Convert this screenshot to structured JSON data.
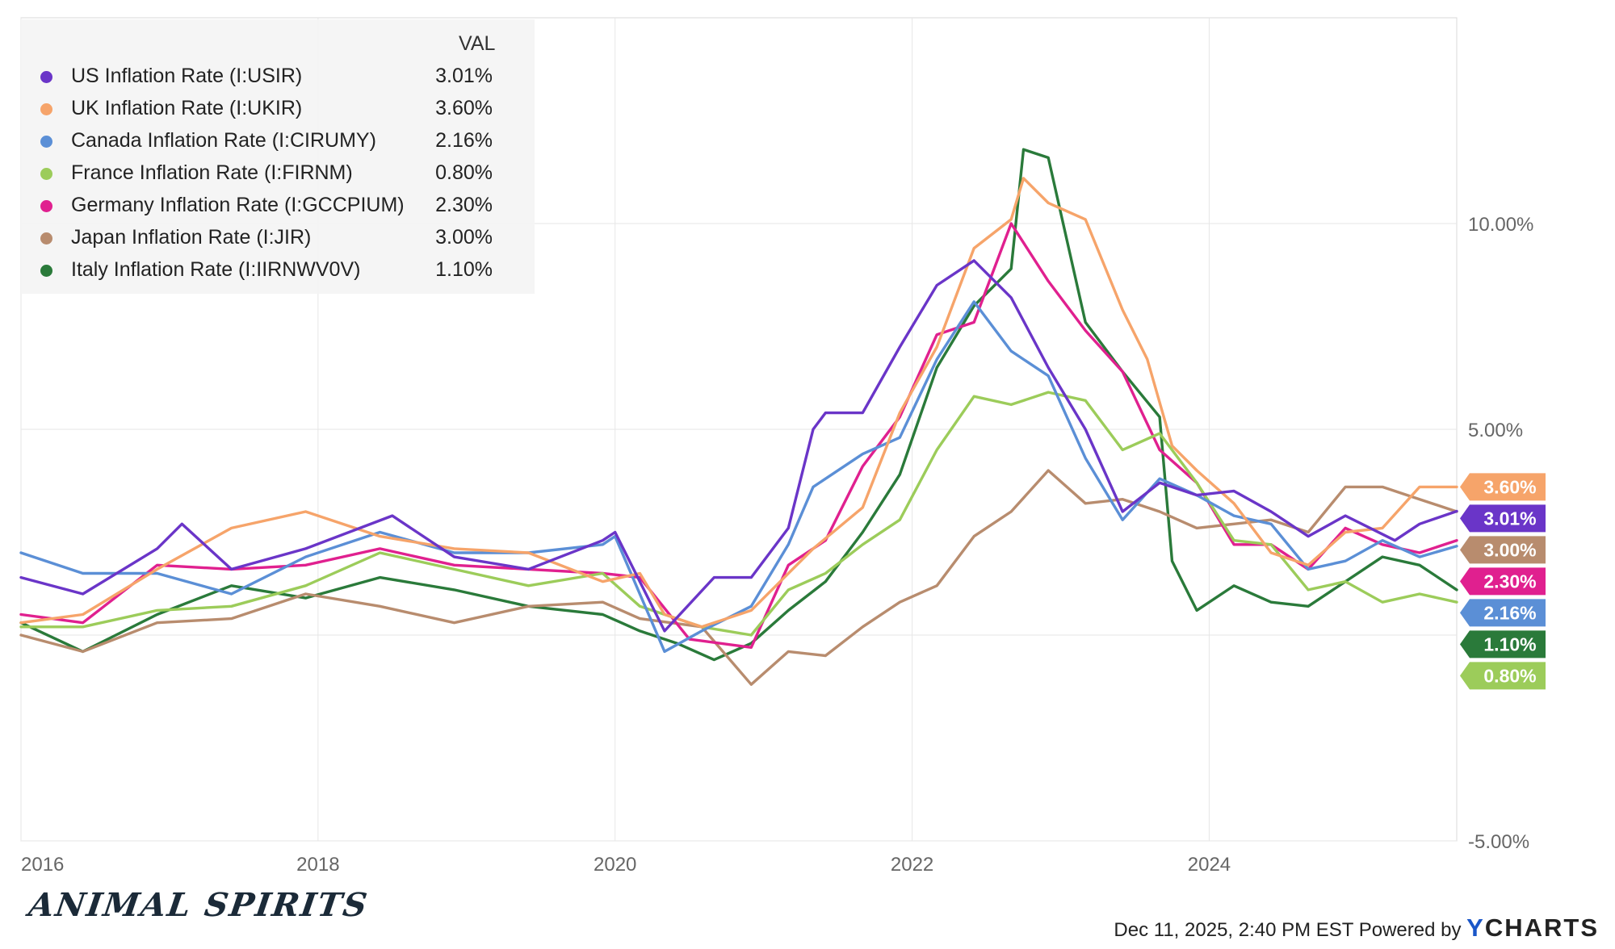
{
  "legend": {
    "header": "VAL"
  },
  "footer": {
    "logo": "ANIMAL SPIRITS",
    "timestamp": "Dec 11, 2025, 2:40 PM EST",
    "powered_by": "Powered by",
    "brand_y": "Y",
    "brand_rest": "CHARTS"
  },
  "chart_data": {
    "type": "line",
    "x_range": [
      "2016-01",
      "2025-09"
    ],
    "x_ticks": [
      "2016",
      "2018",
      "2020",
      "2022",
      "2024"
    ],
    "y_range": [
      -5,
      15
    ],
    "y_ticks": [
      -5,
      0,
      5,
      10
    ],
    "y_tick_labels": [
      "-5.00%",
      "",
      "5.00%",
      "10.00%"
    ],
    "grid": true,
    "legend_position": "top-left",
    "series": [
      {
        "name": "US Inflation Rate (I:USIR)",
        "label": "3.01%",
        "color": "#6a35c8",
        "points": [
          [
            "2016-01",
            1.4
          ],
          [
            "2016-06",
            1.0
          ],
          [
            "2016-12",
            2.1
          ],
          [
            "2017-02",
            2.7
          ],
          [
            "2017-06",
            1.6
          ],
          [
            "2017-12",
            2.1
          ],
          [
            "2018-07",
            2.9
          ],
          [
            "2018-12",
            1.9
          ],
          [
            "2019-06",
            1.6
          ],
          [
            "2019-12",
            2.3
          ],
          [
            "2020-01",
            2.5
          ],
          [
            "2020-05",
            0.1
          ],
          [
            "2020-09",
            1.4
          ],
          [
            "2020-12",
            1.4
          ],
          [
            "2021-03",
            2.6
          ],
          [
            "2021-05",
            5.0
          ],
          [
            "2021-06",
            5.4
          ],
          [
            "2021-09",
            5.4
          ],
          [
            "2021-12",
            7.0
          ],
          [
            "2022-03",
            8.5
          ],
          [
            "2022-06",
            9.1
          ],
          [
            "2022-09",
            8.2
          ],
          [
            "2022-12",
            6.5
          ],
          [
            "2023-03",
            5.0
          ],
          [
            "2023-06",
            3.0
          ],
          [
            "2023-09",
            3.7
          ],
          [
            "2023-12",
            3.4
          ],
          [
            "2024-03",
            3.5
          ],
          [
            "2024-06",
            3.0
          ],
          [
            "2024-09",
            2.4
          ],
          [
            "2024-12",
            2.9
          ],
          [
            "2025-04",
            2.3
          ],
          [
            "2025-06",
            2.7
          ],
          [
            "2025-09",
            3.01
          ]
        ]
      },
      {
        "name": "UK Inflation Rate (I:UKIR)",
        "label": "3.60%",
        "color": "#f6a46a",
        "points": [
          [
            "2016-01",
            0.3
          ],
          [
            "2016-06",
            0.5
          ],
          [
            "2016-12",
            1.6
          ],
          [
            "2017-06",
            2.6
          ],
          [
            "2017-12",
            3.0
          ],
          [
            "2018-06",
            2.4
          ],
          [
            "2018-12",
            2.1
          ],
          [
            "2019-06",
            2.0
          ],
          [
            "2019-12",
            1.3
          ],
          [
            "2020-03",
            1.5
          ],
          [
            "2020-05",
            0.5
          ],
          [
            "2020-08",
            0.2
          ],
          [
            "2020-12",
            0.6
          ],
          [
            "2021-05",
            2.1
          ],
          [
            "2021-09",
            3.1
          ],
          [
            "2021-12",
            5.4
          ],
          [
            "2022-03",
            7.0
          ],
          [
            "2022-06",
            9.4
          ],
          [
            "2022-09",
            10.1
          ],
          [
            "2022-10",
            11.1
          ],
          [
            "2022-12",
            10.5
          ],
          [
            "2023-03",
            10.1
          ],
          [
            "2023-06",
            7.9
          ],
          [
            "2023-08",
            6.7
          ],
          [
            "2023-10",
            4.6
          ],
          [
            "2023-12",
            4.0
          ],
          [
            "2024-03",
            3.2
          ],
          [
            "2024-06",
            2.0
          ],
          [
            "2024-09",
            1.7
          ],
          [
            "2024-12",
            2.5
          ],
          [
            "2025-03",
            2.6
          ],
          [
            "2025-06",
            3.6
          ],
          [
            "2025-09",
            3.6
          ]
        ]
      },
      {
        "name": "Canada Inflation Rate (I:CIRUMY)",
        "label": "2.16%",
        "color": "#5b8fd6",
        "points": [
          [
            "2016-01",
            2.0
          ],
          [
            "2016-06",
            1.5
          ],
          [
            "2016-12",
            1.5
          ],
          [
            "2017-06",
            1.0
          ],
          [
            "2017-12",
            1.9
          ],
          [
            "2018-06",
            2.5
          ],
          [
            "2018-12",
            2.0
          ],
          [
            "2019-06",
            2.0
          ],
          [
            "2019-12",
            2.2
          ],
          [
            "2020-01",
            2.4
          ],
          [
            "2020-05",
            -0.4
          ],
          [
            "2020-08",
            0.1
          ],
          [
            "2020-12",
            0.7
          ],
          [
            "2021-03",
            2.2
          ],
          [
            "2021-05",
            3.6
          ],
          [
            "2021-09",
            4.4
          ],
          [
            "2021-12",
            4.8
          ],
          [
            "2022-03",
            6.7
          ],
          [
            "2022-06",
            8.1
          ],
          [
            "2022-09",
            6.9
          ],
          [
            "2022-12",
            6.3
          ],
          [
            "2023-03",
            4.3
          ],
          [
            "2023-06",
            2.8
          ],
          [
            "2023-09",
            3.8
          ],
          [
            "2023-12",
            3.4
          ],
          [
            "2024-03",
            2.9
          ],
          [
            "2024-06",
            2.7
          ],
          [
            "2024-09",
            1.6
          ],
          [
            "2024-12",
            1.8
          ],
          [
            "2025-03",
            2.3
          ],
          [
            "2025-06",
            1.9
          ],
          [
            "2025-09",
            2.16
          ]
        ]
      },
      {
        "name": "France Inflation Rate (I:FIRNM)",
        "label": "0.80%",
        "color": "#9ccc5a",
        "points": [
          [
            "2016-01",
            0.2
          ],
          [
            "2016-06",
            0.2
          ],
          [
            "2016-12",
            0.6
          ],
          [
            "2017-06",
            0.7
          ],
          [
            "2017-12",
            1.2
          ],
          [
            "2018-06",
            2.0
          ],
          [
            "2018-12",
            1.6
          ],
          [
            "2019-06",
            1.2
          ],
          [
            "2019-12",
            1.5
          ],
          [
            "2020-03",
            0.7
          ],
          [
            "2020-08",
            0.2
          ],
          [
            "2020-12",
            0.0
          ],
          [
            "2021-03",
            1.1
          ],
          [
            "2021-06",
            1.5
          ],
          [
            "2021-09",
            2.2
          ],
          [
            "2021-12",
            2.8
          ],
          [
            "2022-03",
            4.5
          ],
          [
            "2022-06",
            5.8
          ],
          [
            "2022-09",
            5.6
          ],
          [
            "2022-12",
            5.9
          ],
          [
            "2023-03",
            5.7
          ],
          [
            "2023-06",
            4.5
          ],
          [
            "2023-09",
            4.9
          ],
          [
            "2023-12",
            3.7
          ],
          [
            "2024-03",
            2.3
          ],
          [
            "2024-06",
            2.2
          ],
          [
            "2024-09",
            1.1
          ],
          [
            "2024-12",
            1.3
          ],
          [
            "2025-03",
            0.8
          ],
          [
            "2025-06",
            1.0
          ],
          [
            "2025-09",
            0.8
          ]
        ]
      },
      {
        "name": "Germany Inflation Rate (I:GCCPIUM)",
        "label": "2.30%",
        "color": "#e0208f",
        "points": [
          [
            "2016-01",
            0.5
          ],
          [
            "2016-06",
            0.3
          ],
          [
            "2016-12",
            1.7
          ],
          [
            "2017-06",
            1.6
          ],
          [
            "2017-12",
            1.7
          ],
          [
            "2018-06",
            2.1
          ],
          [
            "2018-12",
            1.7
          ],
          [
            "2019-06",
            1.6
          ],
          [
            "2019-12",
            1.5
          ],
          [
            "2020-03",
            1.4
          ],
          [
            "2020-07",
            -0.1
          ],
          [
            "2020-12",
            -0.3
          ],
          [
            "2021-03",
            1.7
          ],
          [
            "2021-06",
            2.3
          ],
          [
            "2021-09",
            4.1
          ],
          [
            "2021-12",
            5.3
          ],
          [
            "2022-03",
            7.3
          ],
          [
            "2022-06",
            7.6
          ],
          [
            "2022-09",
            10.0
          ],
          [
            "2022-12",
            8.6
          ],
          [
            "2023-03",
            7.4
          ],
          [
            "2023-06",
            6.4
          ],
          [
            "2023-09",
            4.5
          ],
          [
            "2023-12",
            3.7
          ],
          [
            "2024-03",
            2.2
          ],
          [
            "2024-06",
            2.2
          ],
          [
            "2024-09",
            1.6
          ],
          [
            "2024-12",
            2.6
          ],
          [
            "2025-03",
            2.2
          ],
          [
            "2025-06",
            2.0
          ],
          [
            "2025-09",
            2.3
          ]
        ]
      },
      {
        "name": "Japan Inflation Rate (I:JIR)",
        "label": "3.00%",
        "color": "#b88c6e",
        "points": [
          [
            "2016-01",
            0.0
          ],
          [
            "2016-06",
            -0.4
          ],
          [
            "2016-12",
            0.3
          ],
          [
            "2017-06",
            0.4
          ],
          [
            "2017-12",
            1.0
          ],
          [
            "2018-06",
            0.7
          ],
          [
            "2018-12",
            0.3
          ],
          [
            "2019-06",
            0.7
          ],
          [
            "2019-12",
            0.8
          ],
          [
            "2020-03",
            0.4
          ],
          [
            "2020-08",
            0.2
          ],
          [
            "2020-12",
            -1.2
          ],
          [
            "2021-03",
            -0.4
          ],
          [
            "2021-06",
            -0.5
          ],
          [
            "2021-09",
            0.2
          ],
          [
            "2021-12",
            0.8
          ],
          [
            "2022-03",
            1.2
          ],
          [
            "2022-06",
            2.4
          ],
          [
            "2022-09",
            3.0
          ],
          [
            "2022-12",
            4.0
          ],
          [
            "2023-03",
            3.2
          ],
          [
            "2023-06",
            3.3
          ],
          [
            "2023-09",
            3.0
          ],
          [
            "2023-12",
            2.6
          ],
          [
            "2024-03",
            2.7
          ],
          [
            "2024-06",
            2.8
          ],
          [
            "2024-09",
            2.5
          ],
          [
            "2024-12",
            3.6
          ],
          [
            "2025-03",
            3.6
          ],
          [
            "2025-06",
            3.3
          ],
          [
            "2025-09",
            3.0
          ]
        ]
      },
      {
        "name": "Italy Inflation Rate (I:IIRNWV0V)",
        "label": "1.10%",
        "color": "#2a7a3a",
        "points": [
          [
            "2016-01",
            0.3
          ],
          [
            "2016-06",
            -0.4
          ],
          [
            "2016-12",
            0.5
          ],
          [
            "2017-06",
            1.2
          ],
          [
            "2017-12",
            0.9
          ],
          [
            "2018-06",
            1.4
          ],
          [
            "2018-12",
            1.1
          ],
          [
            "2019-06",
            0.7
          ],
          [
            "2019-12",
            0.5
          ],
          [
            "2020-03",
            0.1
          ],
          [
            "2020-06",
            -0.2
          ],
          [
            "2020-09",
            -0.6
          ],
          [
            "2020-12",
            -0.2
          ],
          [
            "2021-03",
            0.6
          ],
          [
            "2021-06",
            1.3
          ],
          [
            "2021-09",
            2.5
          ],
          [
            "2021-12",
            3.9
          ],
          [
            "2022-03",
            6.5
          ],
          [
            "2022-06",
            8.0
          ],
          [
            "2022-09",
            8.9
          ],
          [
            "2022-10",
            11.8
          ],
          [
            "2022-12",
            11.6
          ],
          [
            "2023-03",
            7.6
          ],
          [
            "2023-06",
            6.4
          ],
          [
            "2023-09",
            5.3
          ],
          [
            "2023-10",
            1.8
          ],
          [
            "2023-12",
            0.6
          ],
          [
            "2024-03",
            1.2
          ],
          [
            "2024-06",
            0.8
          ],
          [
            "2024-09",
            0.7
          ],
          [
            "2024-12",
            1.3
          ],
          [
            "2025-03",
            1.9
          ],
          [
            "2025-06",
            1.7
          ],
          [
            "2025-09",
            1.1
          ]
        ]
      }
    ]
  }
}
